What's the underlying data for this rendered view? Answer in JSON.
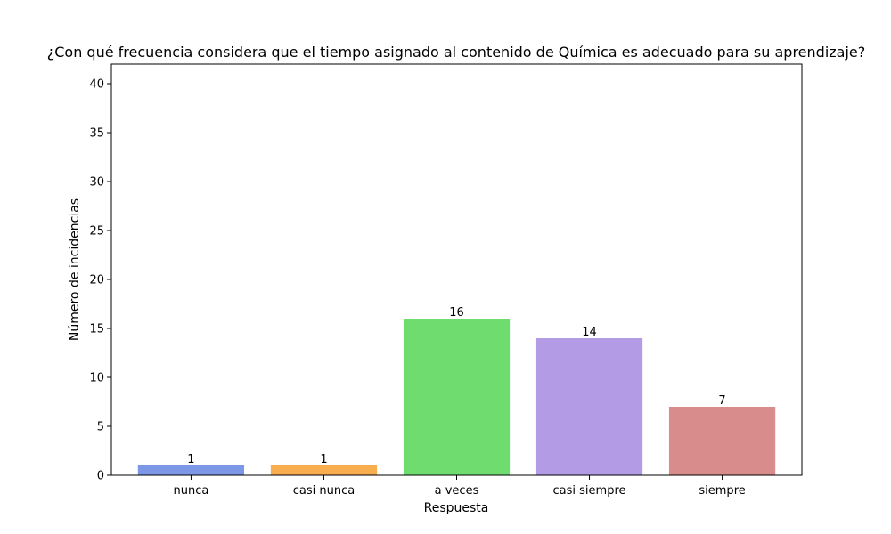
{
  "chart_data": {
    "type": "bar",
    "title": "¿Con qué frecuencia considera que el tiempo asignado al contenido de Química es adecuado para su aprendizaje?",
    "xlabel": "Respuesta",
    "ylabel": "Número de incidencias",
    "categories": [
      "nunca",
      "casi nunca",
      "a veces",
      "casi siempre",
      "siempre"
    ],
    "values": [
      1,
      1,
      16,
      14,
      7
    ],
    "data_labels": [
      "1",
      "1",
      "16",
      "14",
      "7"
    ],
    "colors": [
      "#7b97e6",
      "#f8ad4e",
      "#6fdc6f",
      "#b39ce5",
      "#d98c8c"
    ],
    "ylim": [
      0,
      42
    ],
    "yticks": [
      0,
      5,
      10,
      15,
      20,
      25,
      30,
      35,
      40
    ],
    "grid": false,
    "legend": "none"
  }
}
